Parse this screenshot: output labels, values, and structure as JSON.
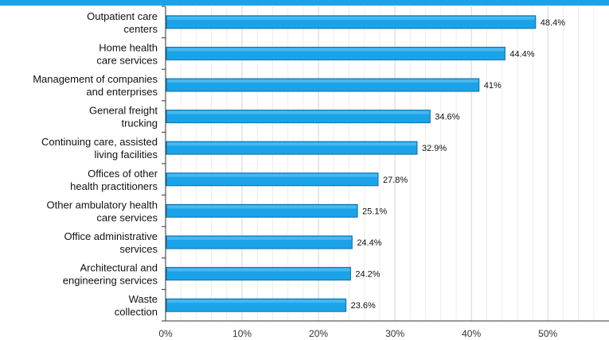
{
  "chart_data": {
    "type": "bar",
    "orientation": "horizontal",
    "categories": [
      [
        "Outpatient care",
        "centers"
      ],
      [
        "Home health",
        "care services"
      ],
      [
        "Management of companies",
        "and enterprises"
      ],
      [
        "General freight",
        "trucking"
      ],
      [
        "Continuing care, assisted",
        "living facilities"
      ],
      [
        "Offices of other",
        "health practitioners"
      ],
      [
        "Other ambulatory health",
        "care services"
      ],
      [
        "Office administrative",
        "services"
      ],
      [
        "Architectural and",
        "engineering services"
      ],
      [
        "Waste",
        "collection"
      ]
    ],
    "values": [
      48.4,
      44.4,
      41,
      34.6,
      32.9,
      27.8,
      25.1,
      24.4,
      24.2,
      23.6
    ],
    "value_labels": [
      "48.4%",
      "44.4%",
      "41%",
      "34.6%",
      "32.9%",
      "27.8%",
      "25.1%",
      "24.4%",
      "24.2%",
      "23.6%"
    ],
    "xlim": [
      0,
      58
    ],
    "x_ticks": [
      0,
      10,
      20,
      30,
      40,
      50
    ],
    "x_tick_labels": [
      "0%",
      "10%",
      "20%",
      "30%",
      "40%",
      "50%"
    ],
    "grid": "vertical",
    "bar_color": "#1aa3e8",
    "bar_edge_color": "#0d6fa8",
    "header_color": "#1aa3e8"
  }
}
